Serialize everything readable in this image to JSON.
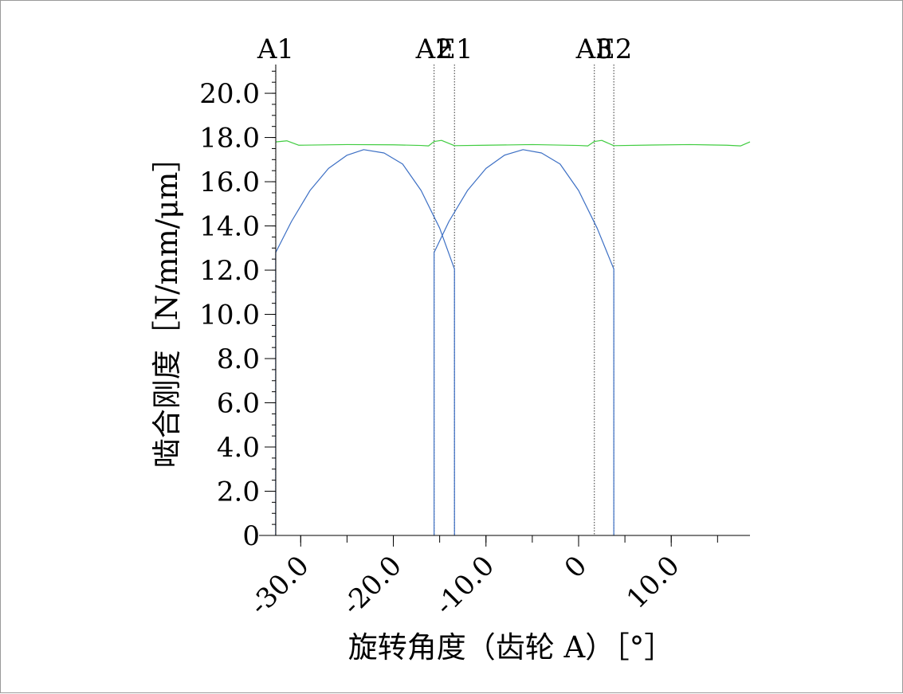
{
  "chart_data": {
    "type": "line",
    "title": "",
    "xlabel": "旋转角度（齿轮 A）［°］",
    "ylabel": "啮合刚度［N/mm/μm］",
    "xlim": [
      -34.5,
      18.5
    ],
    "ylim": [
      0,
      21.3
    ],
    "x_ticks": [
      -30,
      -20,
      -10,
      0,
      10
    ],
    "x_tick_labels": [
      "-30.0",
      "-20.0",
      "-10.0",
      "0",
      "10.0"
    ],
    "x_minor_step": 5,
    "y_ticks": [
      0,
      2,
      4,
      6,
      8,
      10,
      12,
      14,
      16,
      18,
      20
    ],
    "y_tick_labels": [
      "0",
      "2.0",
      "4.0",
      "6.0",
      "8.0",
      "10.0",
      "12.0",
      "14.0",
      "16.0",
      "18.0",
      "20.0"
    ],
    "y_minor_step": 0.5,
    "grid": false,
    "markers": [
      {
        "label": "A1",
        "x": -32.7
      },
      {
        "label": "A2",
        "x": -15.6
      },
      {
        "label": "E1",
        "x": -13.4
      },
      {
        "label": "A3",
        "x": 1.7
      },
      {
        "label": "E2",
        "x": 3.8
      }
    ],
    "series": [
      {
        "color": "#3c6fc4",
        "kind": "single-tooth",
        "segments": [
          {
            "x": [
              -32.7,
              -31,
              -29,
              -27,
              -25,
              -23.2,
              -21,
              -19,
              -17,
              -15,
              -13.4
            ],
            "y": [
              12.8,
              14.2,
              15.6,
              16.6,
              17.2,
              17.45,
              17.3,
              16.8,
              15.6,
              13.9,
              12.05
            ]
          },
          {
            "x": [
              -15.6,
              -14,
              -12,
              -10,
              -8,
              -6,
              -4,
              -2,
              0,
              2,
              3.8
            ],
            "y": [
              12.8,
              14.2,
              15.6,
              16.6,
              17.2,
              17.45,
              17.3,
              16.8,
              15.6,
              13.9,
              12.05
            ]
          }
        ]
      },
      {
        "color": "#40cc40",
        "kind": "total",
        "segments": [
          {
            "x": [
              -32.7,
              -31.5,
              -30.2,
              -25,
              -20,
              -17,
              -16.2,
              -15.6,
              -14.8,
              -13.4,
              -10,
              -5,
              0,
              1.0,
              1.7,
              2.5,
              3.8,
              8,
              12,
              16,
              17.5,
              18.5
            ],
            "y": [
              17.8,
              17.85,
              17.65,
              17.68,
              17.67,
              17.64,
              17.62,
              17.82,
              17.87,
              17.63,
              17.65,
              17.68,
              17.64,
              17.62,
              17.82,
              17.87,
              17.63,
              17.66,
              17.68,
              17.65,
              17.62,
              17.8
            ]
          }
        ]
      }
    ]
  }
}
